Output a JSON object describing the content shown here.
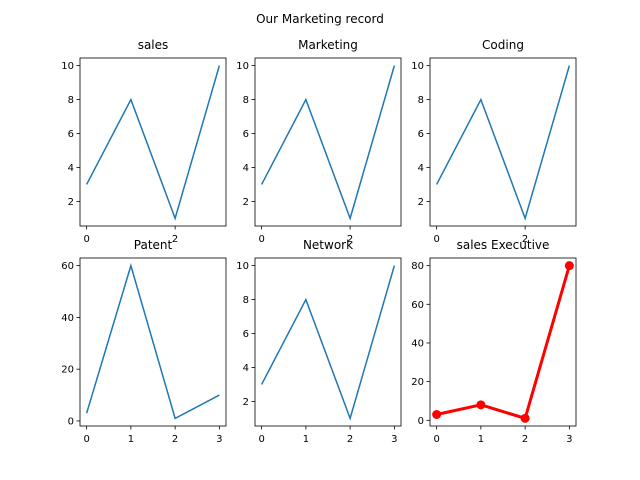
{
  "figure": {
    "suptitle": "Our Marketing record"
  },
  "chart_data": [
    {
      "type": "line",
      "title": "sales",
      "x": [
        0,
        1,
        2,
        3
      ],
      "series": [
        {
          "values": [
            3,
            8,
            1,
            10
          ]
        }
      ],
      "xlim": [
        -0.15,
        3.15
      ],
      "ylim": [
        0.55,
        10.45
      ],
      "xticks": [
        0,
        2
      ],
      "yticks": [
        2,
        4,
        6,
        8,
        10
      ],
      "color": "#1f77b4",
      "marker": false,
      "linewidth": 1.5,
      "grid": false
    },
    {
      "type": "line",
      "title": "Marketing",
      "x": [
        0,
        1,
        2,
        3
      ],
      "series": [
        {
          "values": [
            3,
            8,
            1,
            10
          ]
        }
      ],
      "xlim": [
        -0.15,
        3.15
      ],
      "ylim": [
        0.55,
        10.45
      ],
      "xticks": [
        0,
        2
      ],
      "yticks": [
        2,
        4,
        6,
        8,
        10
      ],
      "color": "#1f77b4",
      "marker": false,
      "linewidth": 1.5,
      "grid": false
    },
    {
      "type": "line",
      "title": "Coding",
      "x": [
        0,
        1,
        2,
        3
      ],
      "series": [
        {
          "values": [
            3,
            8,
            1,
            10
          ]
        }
      ],
      "xlim": [
        -0.15,
        3.15
      ],
      "ylim": [
        0.55,
        10.45
      ],
      "xticks": [
        0,
        2
      ],
      "yticks": [
        2,
        4,
        6,
        8,
        10
      ],
      "color": "#1f77b4",
      "marker": false,
      "linewidth": 1.5,
      "grid": false
    },
    {
      "type": "line",
      "title": "Patent",
      "x": [
        0,
        1,
        2,
        3
      ],
      "series": [
        {
          "values": [
            3,
            60,
            1,
            10
          ]
        }
      ],
      "xlim": [
        -0.15,
        3.15
      ],
      "ylim": [
        -1.95,
        62.95
      ],
      "xticks": [
        0,
        1,
        2,
        3
      ],
      "yticks": [
        0,
        20,
        40,
        60
      ],
      "color": "#1f77b4",
      "marker": false,
      "linewidth": 1.5,
      "grid": false
    },
    {
      "type": "line",
      "title": "Network",
      "x": [
        0,
        1,
        2,
        3
      ],
      "series": [
        {
          "values": [
            3,
            8,
            1,
            10
          ]
        }
      ],
      "xlim": [
        -0.15,
        3.15
      ],
      "ylim": [
        0.55,
        10.45
      ],
      "xticks": [
        0,
        1,
        2,
        3
      ],
      "yticks": [
        2,
        4,
        6,
        8,
        10
      ],
      "color": "#1f77b4",
      "marker": false,
      "linewidth": 1.5,
      "grid": false
    },
    {
      "type": "line",
      "title": "sales Executive",
      "x": [
        0,
        1,
        2,
        3
      ],
      "series": [
        {
          "values": [
            3,
            8,
            1,
            80
          ]
        }
      ],
      "xlim": [
        -0.15,
        3.15
      ],
      "ylim": [
        -2.95,
        83.95
      ],
      "xticks": [
        0,
        1,
        2,
        3
      ],
      "yticks": [
        0,
        20,
        40,
        60,
        80
      ],
      "color": "#ff0000",
      "marker": true,
      "linewidth": 3,
      "grid": false
    }
  ]
}
